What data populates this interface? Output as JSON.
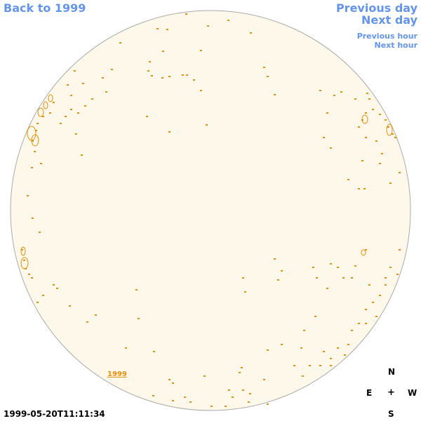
{
  "nav": {
    "back": "Back to 1999",
    "previous_day": "Previous day",
    "next_day": "Next day",
    "previous_hour": "Previous hour",
    "next_hour": "Next hour"
  },
  "disk": {
    "fill_color": "#fdf8ea",
    "limb_color": "#aaaaaa",
    "contour_color": "#e8900a"
  },
  "year_label": "1999",
  "compass": {
    "n": "N",
    "e": "E",
    "center": "+",
    "w": "W",
    "s": "S"
  },
  "timestamp": "1999-05-20T11:11:34"
}
